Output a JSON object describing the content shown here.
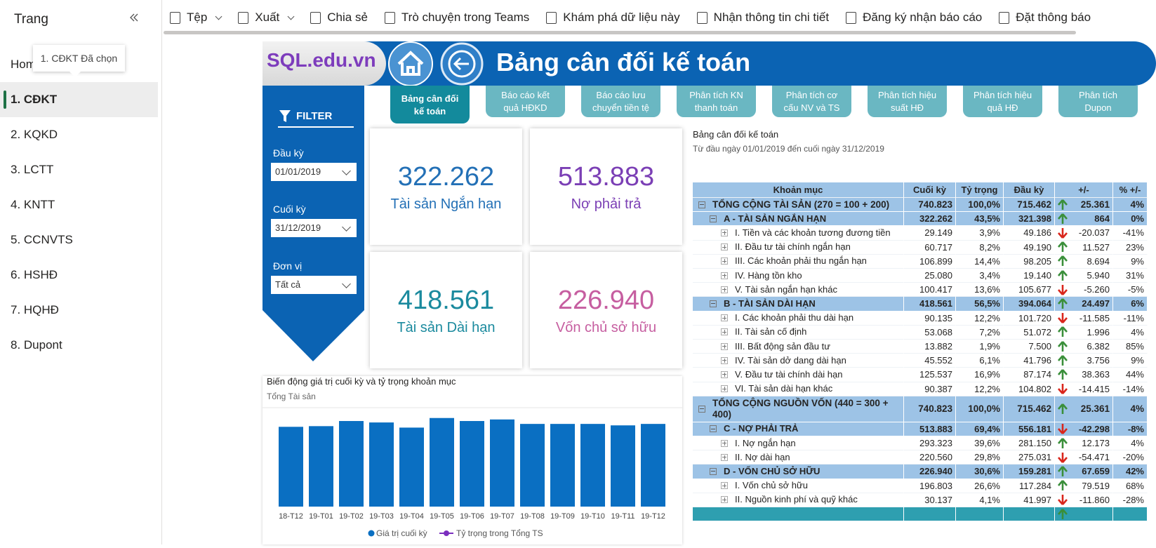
{
  "sidebar": {
    "title": "Trang",
    "tooltip": "1. CĐKT Đã chọn",
    "selected": 1,
    "pages": [
      "Home",
      "1. CĐKT",
      "2. KQKD",
      "3. LCTT",
      "4. KNTT",
      "5. CCNVTS",
      "6. HSHĐ",
      "7. HQHĐ",
      "8. Dupont"
    ]
  },
  "toolbar": [
    "Tệp",
    "Xuất",
    "Chia sẻ",
    "Trò chuyện trong Teams",
    "Khám phá dữ liệu này",
    "Nhận thông tin chi tiết",
    "Đăng ký nhận báo cáo",
    "Đặt thông báo"
  ],
  "report": {
    "logo": "SQL.edu.vn",
    "title": "Bảng cân đối kế toán",
    "active_tab": 0,
    "tabs": [
      "Bảng cân đối\nkế toán",
      "Báo cáo kết\nquả HĐKD",
      "Báo cáo lưu\nchuyển tiền tệ",
      "Phân tích KN\nthanh toán",
      "Phân tích cơ\ncấu NV và TS",
      "Phân tích hiệu\nsuất HĐ",
      "Phân tích hiệu\nquả HĐ",
      "Phân tích\nDupon"
    ]
  },
  "filter": {
    "title": "FILTER",
    "fields": [
      {
        "label": "Đầu kỳ",
        "value": "01/01/2019"
      },
      {
        "label": "Cuối kỳ",
        "value": "31/12/2019"
      },
      {
        "label": "Đơn vị",
        "value": "Tất cả"
      }
    ]
  },
  "cards": [
    {
      "value": "322.262",
      "label": "Tài sản Ngắn hạn",
      "color": "#2370b6"
    },
    {
      "value": "513.883",
      "label": "Nợ phải trả",
      "color": "#7b3fb5"
    },
    {
      "value": "418.561",
      "label": "Tài sản Dài hạn",
      "color": "#1b8a9e"
    },
    {
      "value": "226.940",
      "label": "Vốn chủ sở hữu",
      "color": "#c65ea0"
    }
  ],
  "chart_data": {
    "type": "bar",
    "title": "Biến động giá trị cuối kỳ và tỷ trọng khoản mục",
    "subtitle": "Tổng Tài sản",
    "categories": [
      "18-T12",
      "19-T01",
      "19-T02",
      "19-T03",
      "19-T04",
      "19-T05",
      "19-T06",
      "19-T07",
      "19-T08",
      "19-T09",
      "19-T10",
      "19-T11",
      "19-T12"
    ],
    "series": [
      {
        "name": "Giá trị cuối kỳ",
        "color": "#0a6fc2",
        "values": [
          715,
          721,
          767,
          754,
          708,
          794,
          767,
          781,
          741,
          741,
          741,
          728,
          741
        ]
      }
    ],
    "line_series": {
      "name": "Tỷ trọng trong Tổng TS",
      "color": "#7b2fbe"
    },
    "ylim": [
      0,
      830
    ]
  },
  "table": {
    "title": "Bảng cân đối kế toán",
    "subtitle": "Từ đầu ngày 01/01/2019 đến cuối ngày 31/12/2019",
    "columns": [
      "Khoản mục",
      "Cuối kỳ",
      "Tỷ trọng",
      "Đầu kỳ",
      "+/-",
      "% +/-"
    ],
    "footer_trend": "up",
    "rows": [
      {
        "level": 0,
        "trend": "up",
        "cells": [
          "TỔNG CỘNG TÀI SẢN (270 = 100 + 200)",
          "740.823",
          "100,0%",
          "715.462",
          "25.361",
          "4%"
        ]
      },
      {
        "level": 1,
        "trend": "up",
        "cells": [
          "A - TÀI SẢN NGẮN HẠN",
          "322.262",
          "43,5%",
          "321.398",
          "864",
          "0%"
        ]
      },
      {
        "level": 2,
        "trend": "down",
        "cells": [
          "I. Tiền và các khoản tương đương tiền",
          "29.149",
          "3,9%",
          "49.186",
          "-20.037",
          "-41%"
        ]
      },
      {
        "level": 2,
        "trend": "up",
        "cells": [
          "II. Đầu tư tài chính ngắn hạn",
          "60.717",
          "8,2%",
          "49.190",
          "11.527",
          "23%"
        ]
      },
      {
        "level": 2,
        "trend": "up",
        "cells": [
          "III. Các khoản phải thu ngắn hạn",
          "106.899",
          "14,4%",
          "98.205",
          "8.694",
          "9%"
        ]
      },
      {
        "level": 2,
        "trend": "up",
        "cells": [
          "IV. Hàng tồn kho",
          "25.080",
          "3,4%",
          "19.140",
          "5.940",
          "31%"
        ]
      },
      {
        "level": 2,
        "trend": "down",
        "cells": [
          "V. Tài sản ngắn hạn khác",
          "100.417",
          "13,6%",
          "105.677",
          "-5.260",
          "-5%"
        ]
      },
      {
        "level": 1,
        "trend": "up",
        "cells": [
          "B - TÀI SẢN DÀI HẠN",
          "418.561",
          "56,5%",
          "394.064",
          "24.497",
          "6%"
        ]
      },
      {
        "level": 2,
        "trend": "down",
        "cells": [
          "I. Các khoản phải thu dài hạn",
          "90.135",
          "12,2%",
          "101.720",
          "-11.585",
          "-11%"
        ]
      },
      {
        "level": 2,
        "trend": "up",
        "cells": [
          "II. Tài sản cố định",
          "53.068",
          "7,2%",
          "51.072",
          "1.996",
          "4%"
        ]
      },
      {
        "level": 2,
        "trend": "up",
        "cells": [
          "III. Bất động sản đầu tư",
          "13.882",
          "1,9%",
          "7.500",
          "6.382",
          "85%"
        ]
      },
      {
        "level": 2,
        "trend": "up",
        "cells": [
          "IV. Tài sản dở dang dài hạn",
          "45.552",
          "6,1%",
          "41.796",
          "3.756",
          "9%"
        ]
      },
      {
        "level": 2,
        "trend": "up",
        "cells": [
          "V. Đầu tư tài chính dài hạn",
          "125.537",
          "16,9%",
          "87.174",
          "38.363",
          "44%"
        ]
      },
      {
        "level": 2,
        "trend": "down",
        "cells": [
          "VI. Tài sản dài hạn khác",
          "90.387",
          "12,2%",
          "104.802",
          "-14.415",
          "-14%"
        ]
      },
      {
        "level": 0,
        "trend": "up",
        "cells": [
          "TỔNG CỘNG NGUỒN VỐN (440 = 300 + 400)",
          "740.823",
          "100,0%",
          "715.462",
          "25.361",
          "4%"
        ]
      },
      {
        "level": 1,
        "trend": "down",
        "cells": [
          "C - NỢ PHẢI TRẢ",
          "513.883",
          "69,4%",
          "556.181",
          "-42.298",
          "-8%"
        ]
      },
      {
        "level": 2,
        "trend": "up",
        "cells": [
          "I. Nợ ngắn hạn",
          "293.323",
          "39,6%",
          "281.150",
          "12.173",
          "4%"
        ]
      },
      {
        "level": 2,
        "trend": "down",
        "cells": [
          "II. Nợ dài hạn",
          "220.560",
          "29,8%",
          "275.031",
          "-54.471",
          "-20%"
        ]
      },
      {
        "level": 1,
        "trend": "up",
        "cells": [
          "D - VỐN CHỦ SỞ HỮU",
          "226.940",
          "30,6%",
          "159.281",
          "67.659",
          "42%"
        ]
      },
      {
        "level": 2,
        "trend": "up",
        "cells": [
          "I. Vốn chủ sở hữu",
          "196.803",
          "26,6%",
          "117.284",
          "79.519",
          "68%"
        ]
      },
      {
        "level": 2,
        "trend": "down",
        "cells": [
          "II. Nguồn kinh phí và quỹ khác",
          "30.137",
          "4,1%",
          "41.997",
          "-11.860",
          "-28%"
        ]
      }
    ]
  }
}
